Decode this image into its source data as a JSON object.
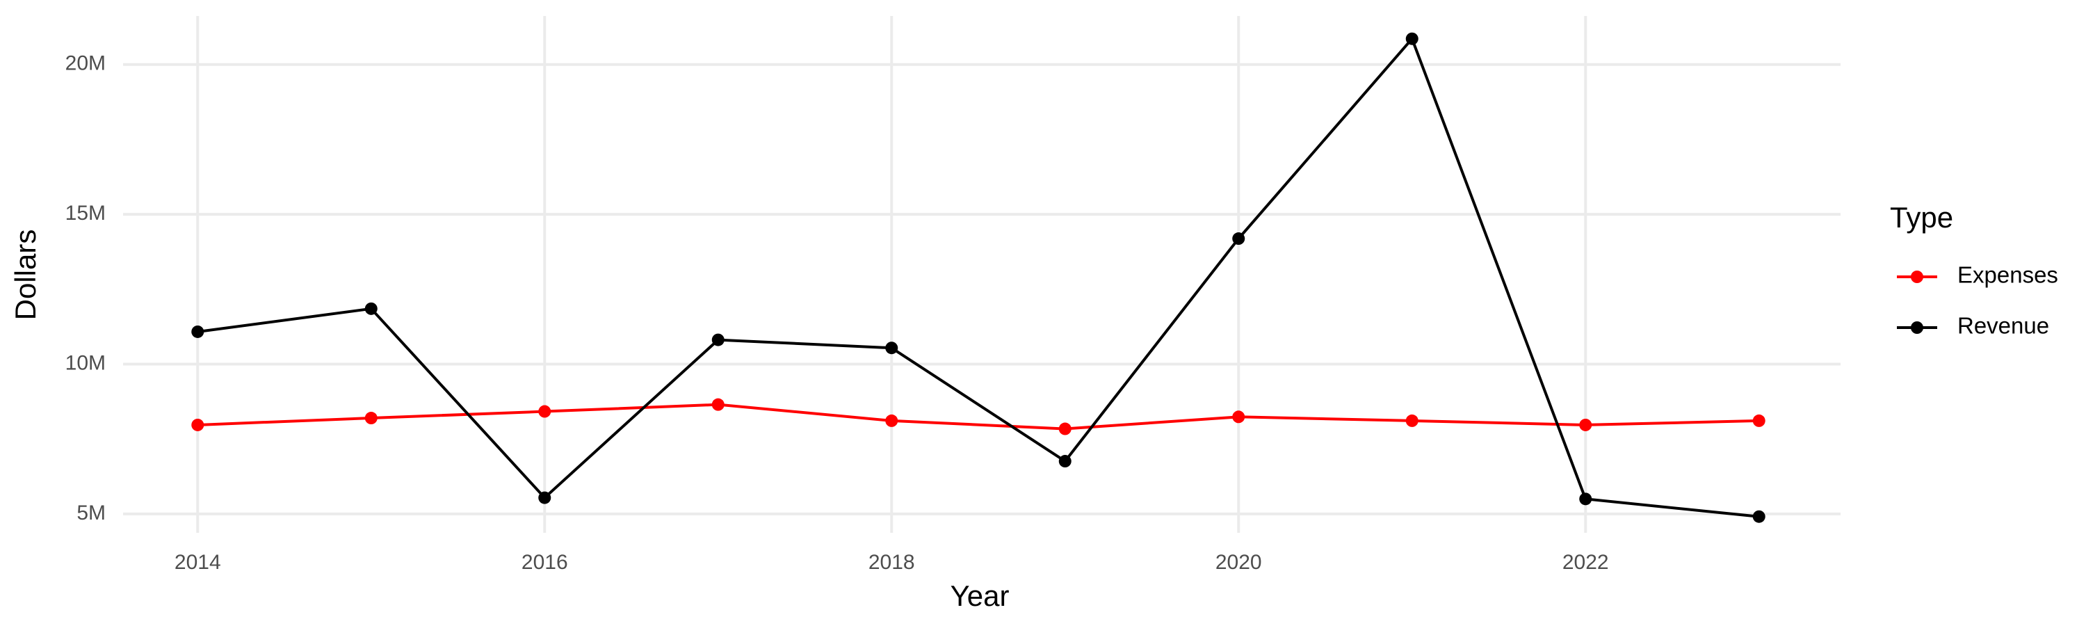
{
  "chart_data": {
    "type": "line",
    "x_label": "Year",
    "y_label": "Dollars",
    "legend_title": "Type",
    "x": [
      2014,
      2015,
      2016,
      2017,
      2018,
      2019,
      2020,
      2021,
      2022,
      2023
    ],
    "series": [
      {
        "name": "Expenses",
        "color": "#ff0000",
        "values": [
          7970000,
          8200000,
          8420000,
          8650000,
          8110000,
          7840000,
          8240000,
          8110000,
          7970000,
          8110000
        ]
      },
      {
        "name": "Revenue",
        "color": "#000000",
        "values": [
          11080000,
          11850000,
          5540000,
          10810000,
          10540000,
          6760000,
          14190000,
          20860000,
          5500000,
          4910000
        ]
      }
    ],
    "xlim": [
      2013.57,
      2023.47
    ],
    "xticks": [
      2014,
      2016,
      2018,
      2020,
      2022
    ],
    "ylim": [
      4370000,
      21620000
    ],
    "yticks": [
      {
        "value": 5000000,
        "label": "5M"
      },
      {
        "value": 10000000,
        "label": "10M"
      },
      {
        "value": 15000000,
        "label": "15M"
      },
      {
        "value": 20000000,
        "label": "20M"
      }
    ],
    "grid": true,
    "legend": "right"
  }
}
